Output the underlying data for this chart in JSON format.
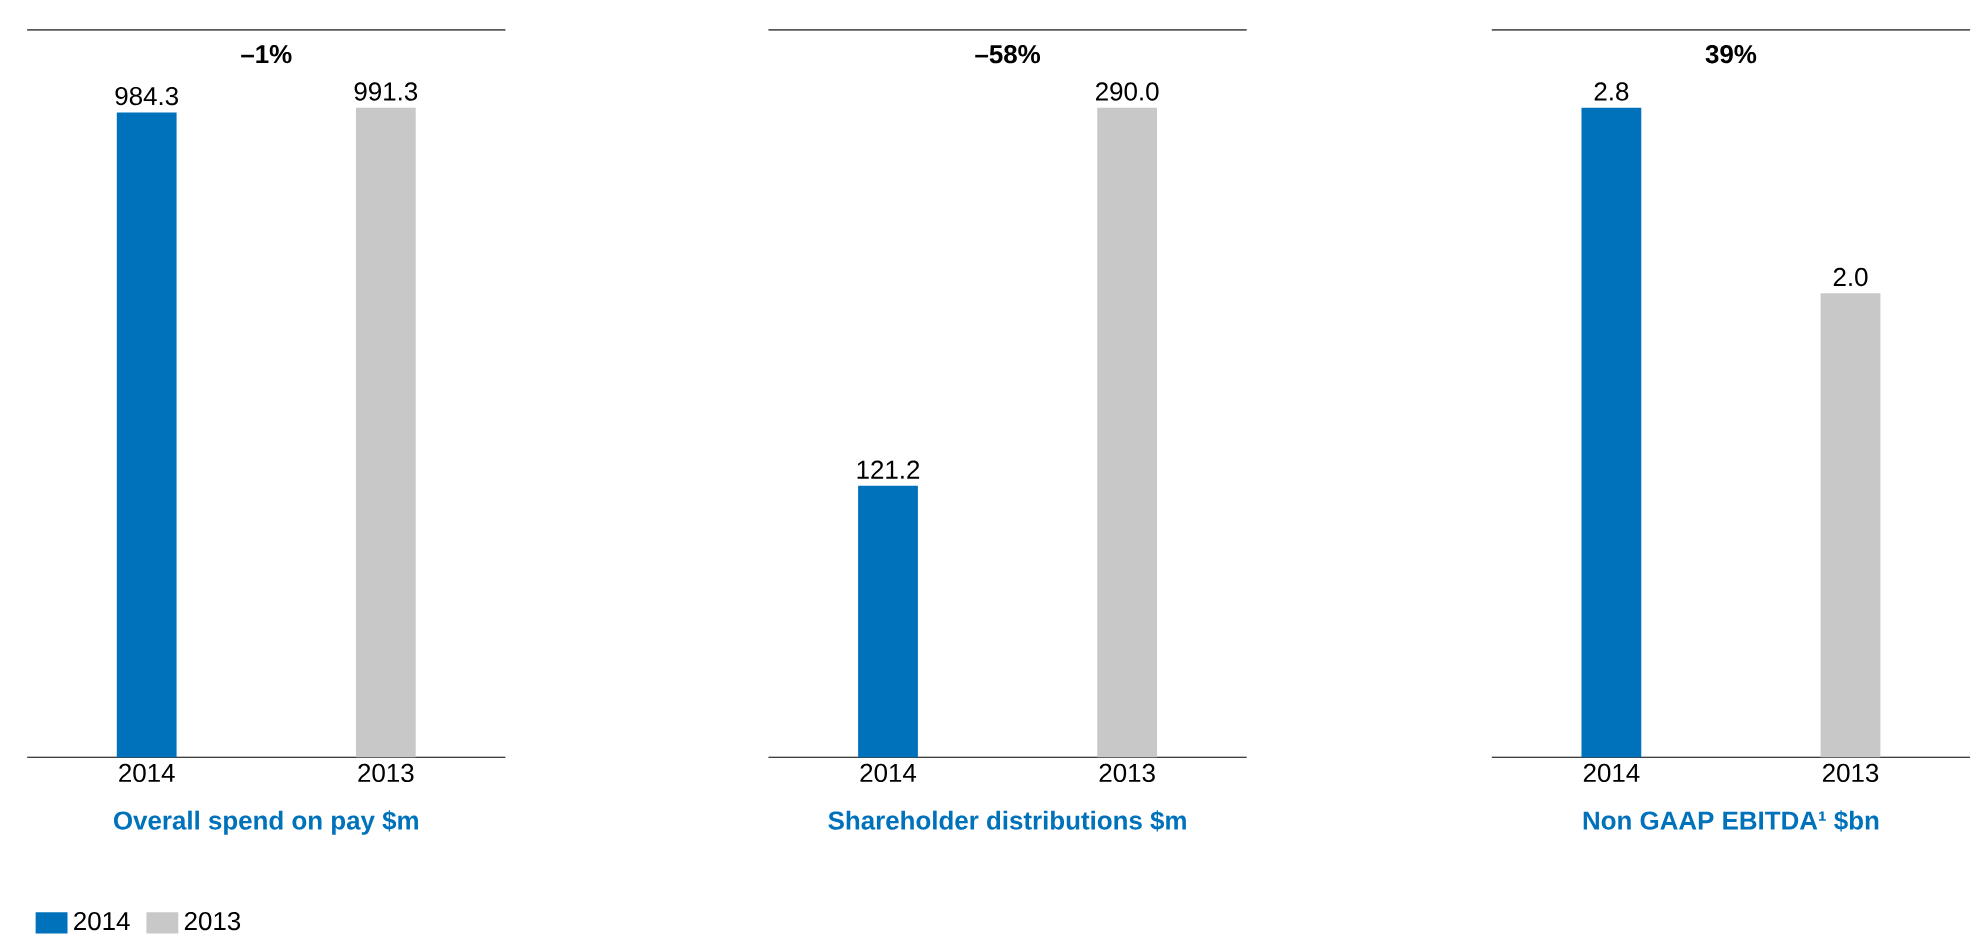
{
  "chart_data": [
    {
      "type": "bar",
      "title": "Overall spend on pay $m",
      "categories": [
        "2014",
        "2013"
      ],
      "series": [
        {
          "name": "2014",
          "color": "#0072bc",
          "values": [
            984.3,
            null
          ],
          "value_labels": [
            "984.3",
            null
          ]
        },
        {
          "name": "2013",
          "color": "#c8c8c8",
          "values": [
            null,
            991.3
          ],
          "value_labels": [
            null,
            "991.3"
          ]
        }
      ],
      "annotations": [
        "–1%"
      ],
      "legend": "bottom left"
    },
    {
      "type": "bar",
      "title": "Shareholder distributions $m",
      "categories": [
        "2014",
        "2013"
      ],
      "series": [
        {
          "color": "#0072bc",
          "values": [
            121.2,
            null
          ],
          "value_labels": [
            "121.2",
            null
          ]
        },
        {
          "color": "#c8c8c8",
          "values": [
            null,
            290.0
          ],
          "value_labels": [
            null,
            "290.0"
          ]
        }
      ],
      "annotations": [
        "–58%"
      ]
    },
    {
      "type": "bar",
      "title": "Non GAAP EBITDA¹ $bn",
      "categories": [
        "2014",
        "2013"
      ],
      "series": [
        {
          "color": "#0072bc",
          "values": [
            2.8,
            null
          ],
          "value_labels": [
            "2.8",
            null
          ]
        },
        {
          "color": "#c8c8c8",
          "values": [
            null,
            2.0
          ],
          "value_labels": [
            null,
            "2.0"
          ]
        }
      ],
      "annotations": [
        "39%"
      ]
    }
  ]
}
